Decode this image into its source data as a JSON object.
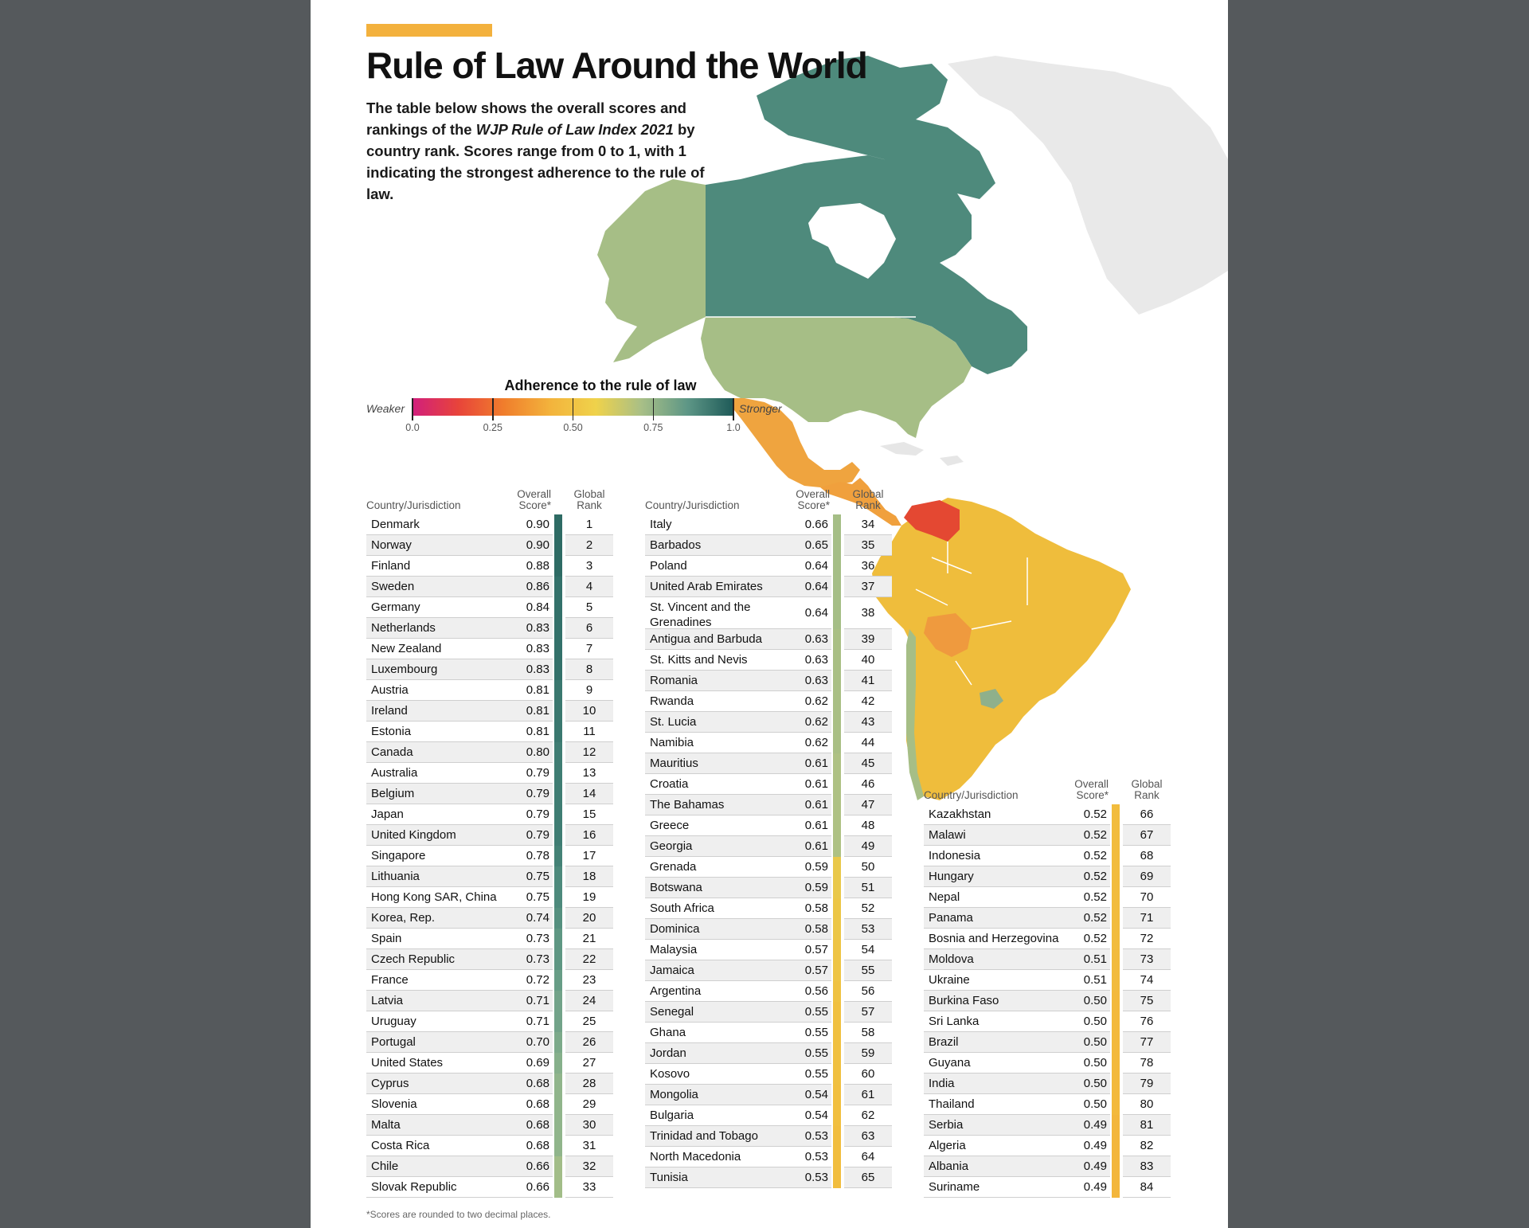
{
  "header": {
    "title": "Rule of Law Around the World",
    "intro_1": "The table below shows the overall scores and rankings of the ",
    "intro_em": "WJP Rule of Law Index 2021",
    "intro_2": " by country rank. Scores range from 0 to 1, with 1 indicating the strongest adherence to the rule of law.",
    "accent_color": "#f3b13d"
  },
  "legend": {
    "title": "Adherence to the rule of law",
    "weak_label": "Weaker",
    "strong_label": "Stronger",
    "ticks": [
      "0.0",
      "0.25",
      "0.50",
      "0.75",
      "1.0"
    ],
    "gradient": [
      "#d11f7c",
      "#e8443a",
      "#f07e2c",
      "#f3b33c",
      "#efd24b",
      "#a8bf87",
      "#5d9686",
      "#1e5a58"
    ]
  },
  "table_headers": {
    "country": "Country/Jurisdiction",
    "score_line1": "Overall",
    "score_line2": "Score*",
    "rank_line1": "Global",
    "rank_line2": "Rank"
  },
  "columns": [
    {
      "band_color": "#3d7a6f",
      "rows": [
        {
          "country": "Denmark",
          "score": "0.90",
          "rank": "1",
          "band": "#2e6b64"
        },
        {
          "country": "Norway",
          "score": "0.90",
          "rank": "2",
          "band": "#2e6b64"
        },
        {
          "country": "Finland",
          "score": "0.88",
          "rank": "3",
          "band": "#2e6b64"
        },
        {
          "country": "Sweden",
          "score": "0.86",
          "rank": "4",
          "band": "#33716a"
        },
        {
          "country": "Germany",
          "score": "0.84",
          "rank": "5",
          "band": "#33716a"
        },
        {
          "country": "Netherlands",
          "score": "0.83",
          "rank": "6",
          "band": "#33716a"
        },
        {
          "country": "New Zealand",
          "score": "0.83",
          "rank": "7",
          "band": "#33716a"
        },
        {
          "country": "Luxembourg",
          "score": "0.83",
          "rank": "8",
          "band": "#33716a"
        },
        {
          "country": "Austria",
          "score": "0.81",
          "rank": "9",
          "band": "#3a786f"
        },
        {
          "country": "Ireland",
          "score": "0.81",
          "rank": "10",
          "band": "#3a786f"
        },
        {
          "country": "Estonia",
          "score": "0.81",
          "rank": "11",
          "band": "#3a786f"
        },
        {
          "country": "Canada",
          "score": "0.80",
          "rank": "12",
          "band": "#3f7d73"
        },
        {
          "country": "Australia",
          "score": "0.79",
          "rank": "13",
          "band": "#3f7d73"
        },
        {
          "country": "Belgium",
          "score": "0.79",
          "rank": "14",
          "band": "#3f7d73"
        },
        {
          "country": "Japan",
          "score": "0.79",
          "rank": "15",
          "band": "#3f7d73"
        },
        {
          "country": "United Kingdom",
          "score": "0.79",
          "rank": "16",
          "band": "#3f7d73"
        },
        {
          "country": "Singapore",
          "score": "0.78",
          "rank": "17",
          "band": "#448276"
        },
        {
          "country": "Lithuania",
          "score": "0.75",
          "rank": "18",
          "band": "#4d8a7c"
        },
        {
          "country": "Hong Kong SAR, China",
          "score": "0.75",
          "rank": "19",
          "band": "#4d8a7c"
        },
        {
          "country": "Korea, Rep.",
          "score": "0.74",
          "rank": "20",
          "band": "#55907f"
        },
        {
          "country": "Spain",
          "score": "0.73",
          "rank": "21",
          "band": "#5e9783"
        },
        {
          "country": "Czech Republic",
          "score": "0.73",
          "rank": "22",
          "band": "#5e9783"
        },
        {
          "country": "France",
          "score": "0.72",
          "rank": "23",
          "band": "#679d86"
        },
        {
          "country": "Latvia",
          "score": "0.71",
          "rank": "24",
          "band": "#72a389"
        },
        {
          "country": "Uruguay",
          "score": "0.71",
          "rank": "25",
          "band": "#72a389"
        },
        {
          "country": "Portugal",
          "score": "0.70",
          "rank": "26",
          "band": "#7caa8a"
        },
        {
          "country": "United States",
          "score": "0.69",
          "rank": "27",
          "band": "#86b08b"
        },
        {
          "country": "Cyprus",
          "score": "0.68",
          "rank": "28",
          "band": "#90b58b"
        },
        {
          "country": "Slovenia",
          "score": "0.68",
          "rank": "29",
          "band": "#90b58b"
        },
        {
          "country": "Malta",
          "score": "0.68",
          "rank": "30",
          "band": "#90b58b"
        },
        {
          "country": "Costa Rica",
          "score": "0.68",
          "rank": "31",
          "band": "#90b58b"
        },
        {
          "country": "Chile",
          "score": "0.66",
          "rank": "32",
          "band": "#a2bd88"
        },
        {
          "country": "Slovak Republic",
          "score": "0.66",
          "rank": "33",
          "band": "#a2bd88"
        }
      ]
    },
    {
      "rows": [
        {
          "country": "Italy",
          "score": "0.66",
          "rank": "34",
          "band": "#a5be86"
        },
        {
          "country": "Barbados",
          "score": "0.65",
          "rank": "35",
          "band": "#a5be86"
        },
        {
          "country": "Poland",
          "score": "0.64",
          "rank": "36",
          "band": "#a5be86"
        },
        {
          "country": "United Arab Emirates",
          "score": "0.64",
          "rank": "37",
          "band": "#a5be86"
        },
        {
          "country": "St. Vincent and the Grenadines",
          "score": "0.64",
          "rank": "38",
          "band": "#a5be86",
          "two_line": true
        },
        {
          "country": "Antigua and Barbuda",
          "score": "0.63",
          "rank": "39",
          "band": "#a9bf84"
        },
        {
          "country": "St. Kitts and Nevis",
          "score": "0.63",
          "rank": "40",
          "band": "#a9bf84"
        },
        {
          "country": "Romania",
          "score": "0.63",
          "rank": "41",
          "band": "#a9bf84"
        },
        {
          "country": "Rwanda",
          "score": "0.62",
          "rank": "42",
          "band": "#a9bf84"
        },
        {
          "country": "St. Lucia",
          "score": "0.62",
          "rank": "43",
          "band": "#a9bf84"
        },
        {
          "country": "Namibia",
          "score": "0.62",
          "rank": "44",
          "band": "#a9bf84"
        },
        {
          "country": "Mauritius",
          "score": "0.61",
          "rank": "45",
          "band": "#aec183"
        },
        {
          "country": "Croatia",
          "score": "0.61",
          "rank": "46",
          "band": "#aec183"
        },
        {
          "country": "The Bahamas",
          "score": "0.61",
          "rank": "47",
          "band": "#aec183"
        },
        {
          "country": "Greece",
          "score": "0.61",
          "rank": "48",
          "band": "#aec183"
        },
        {
          "country": "Georgia",
          "score": "0.61",
          "rank": "49",
          "band": "#aec183"
        },
        {
          "country": "Grenada",
          "score": "0.59",
          "rank": "50",
          "band": "#e9c84a"
        },
        {
          "country": "Botswana",
          "score": "0.59",
          "rank": "51",
          "band": "#e9c84a"
        },
        {
          "country": "South Africa",
          "score": "0.58",
          "rank": "52",
          "band": "#ecc646"
        },
        {
          "country": "Dominica",
          "score": "0.58",
          "rank": "53",
          "band": "#ecc646"
        },
        {
          "country": "Malaysia",
          "score": "0.57",
          "rank": "54",
          "band": "#eec444"
        },
        {
          "country": "Jamaica",
          "score": "0.57",
          "rank": "55",
          "band": "#eec444"
        },
        {
          "country": "Argentina",
          "score": "0.56",
          "rank": "56",
          "band": "#efc242"
        },
        {
          "country": "Senegal",
          "score": "0.55",
          "rank": "57",
          "band": "#f0c040"
        },
        {
          "country": "Ghana",
          "score": "0.55",
          "rank": "58",
          "band": "#f0c040"
        },
        {
          "country": "Jordan",
          "score": "0.55",
          "rank": "59",
          "band": "#f0c040"
        },
        {
          "country": "Kosovo",
          "score": "0.55",
          "rank": "60",
          "band": "#f0c040"
        },
        {
          "country": "Mongolia",
          "score": "0.54",
          "rank": "61",
          "band": "#f1bf3f"
        },
        {
          "country": "Bulgaria",
          "score": "0.54",
          "rank": "62",
          "band": "#f1bf3f"
        },
        {
          "country": "Trinidad and Tobago",
          "score": "0.53",
          "rank": "63",
          "band": "#f1bd3e"
        },
        {
          "country": "North Macedonia",
          "score": "0.53",
          "rank": "64",
          "band": "#f1bd3e"
        },
        {
          "country": "Tunisia",
          "score": "0.53",
          "rank": "65",
          "band": "#f1bd3e"
        }
      ]
    },
    {
      "rows": [
        {
          "country": "Kazakhstan",
          "score": "0.52",
          "rank": "66",
          "band": "#f2bc3d"
        },
        {
          "country": "Malawi",
          "score": "0.52",
          "rank": "67",
          "band": "#f2bc3d"
        },
        {
          "country": "Indonesia",
          "score": "0.52",
          "rank": "68",
          "band": "#f2bc3d"
        },
        {
          "country": "Hungary",
          "score": "0.52",
          "rank": "69",
          "band": "#f2bc3d"
        },
        {
          "country": "Nepal",
          "score": "0.52",
          "rank": "70",
          "band": "#f2bc3d"
        },
        {
          "country": "Panama",
          "score": "0.52",
          "rank": "71",
          "band": "#f2bc3d"
        },
        {
          "country": "Bosnia and Herzegovina",
          "score": "0.52",
          "rank": "72",
          "band": "#f2bc3d"
        },
        {
          "country": "Moldova",
          "score": "0.51",
          "rank": "73",
          "band": "#f2bb3d"
        },
        {
          "country": "Ukraine",
          "score": "0.51",
          "rank": "74",
          "band": "#f2bb3d"
        },
        {
          "country": "Burkina Faso",
          "score": "0.50",
          "rank": "75",
          "band": "#f3b93c"
        },
        {
          "country": "Sri Lanka",
          "score": "0.50",
          "rank": "76",
          "band": "#f3b93c"
        },
        {
          "country": "Brazil",
          "score": "0.50",
          "rank": "77",
          "band": "#f3b93c"
        },
        {
          "country": "Guyana",
          "score": "0.50",
          "rank": "78",
          "band": "#f3b93c"
        },
        {
          "country": "India",
          "score": "0.50",
          "rank": "79",
          "band": "#f3b93c"
        },
        {
          "country": "Thailand",
          "score": "0.50",
          "rank": "80",
          "band": "#f3b93c"
        },
        {
          "country": "Serbia",
          "score": "0.49",
          "rank": "81",
          "band": "#f3b63c"
        },
        {
          "country": "Algeria",
          "score": "0.49",
          "rank": "82",
          "band": "#f3b63c"
        },
        {
          "country": "Albania",
          "score": "0.49",
          "rank": "83",
          "band": "#f3b63c"
        },
        {
          "country": "Suriname",
          "score": "0.49",
          "rank": "84",
          "band": "#f3b63c"
        }
      ]
    }
  ],
  "footnote": "*Scores are rounded to two decimal places.",
  "map_colors": {
    "canada": "#4e8a7c",
    "usa": "#a6be86",
    "alaska": "#a6be86",
    "mexico": "#efa43f",
    "central_america": "#f0a03d",
    "south_america": "#efbd3c",
    "venezuela": "#e44832",
    "bolivia": "#ef9a3e",
    "chile": "#a6be86",
    "uruguay": "#8fb08b",
    "peru_ecuador": "#f0b03c",
    "greenland": "#e9e9e9"
  }
}
